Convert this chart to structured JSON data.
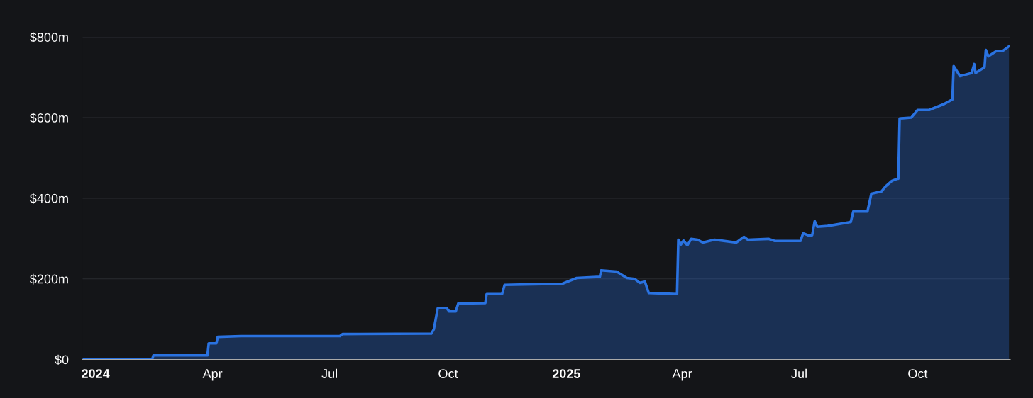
{
  "chart_data": {
    "type": "area",
    "xlim": [
      "2023-12-22",
      "2025-12-12"
    ],
    "xticks": [
      {
        "value": "2024-01-01",
        "label": "2024"
      },
      {
        "value": "2024-04-01",
        "label": "Apr"
      },
      {
        "value": "2024-07-01",
        "label": "Jul"
      },
      {
        "value": "2024-10-01",
        "label": "Oct"
      },
      {
        "value": "2025-01-01",
        "label": "2025"
      },
      {
        "value": "2025-04-01",
        "label": "Apr"
      },
      {
        "value": "2025-07-01",
        "label": "Jul"
      },
      {
        "value": "2025-10-01",
        "label": "Oct"
      }
    ],
    "ylim": [
      0,
      800
    ],
    "yticks": [
      {
        "value": 0,
        "label": "$0"
      },
      {
        "value": 200,
        "label": "$200m"
      },
      {
        "value": 400,
        "label": "$400m"
      },
      {
        "value": 600,
        "label": "$600m"
      },
      {
        "value": 800,
        "label": "$800m"
      }
    ],
    "grid": "y",
    "marker": "none",
    "line_style": "solid",
    "x": [
      "2023-12-22",
      "2024-02-14",
      "2024-02-15",
      "2024-03-28",
      "2024-03-29",
      "2024-04-04",
      "2024-04-05",
      "2024-04-23",
      "2024-07-09",
      "2024-07-11",
      "2024-09-18",
      "2024-09-20",
      "2024-09-23",
      "2024-09-30",
      "2024-10-02",
      "2024-10-07",
      "2024-10-09",
      "2024-10-30",
      "2024-10-31",
      "2024-11-12",
      "2024-11-14",
      "2024-12-29",
      "2025-01-09",
      "2025-01-27",
      "2025-01-28",
      "2025-02-09",
      "2025-02-17",
      "2025-02-23",
      "2025-02-27",
      "2025-03-03",
      "2025-03-06",
      "2025-03-28",
      "2025-03-29",
      "2025-03-31",
      "2025-04-02",
      "2025-04-05",
      "2025-04-08",
      "2025-04-13",
      "2025-04-17",
      "2025-04-26",
      "2025-05-13",
      "2025-05-19",
      "2025-05-22",
      "2025-06-07",
      "2025-06-12",
      "2025-07-02",
      "2025-07-04",
      "2025-07-08",
      "2025-07-11",
      "2025-07-13",
      "2025-07-15",
      "2025-07-23",
      "2025-08-10",
      "2025-08-12",
      "2025-08-23",
      "2025-08-26",
      "2025-09-03",
      "2025-09-06",
      "2025-09-11",
      "2025-09-15",
      "2025-09-16",
      "2025-09-17",
      "2025-09-26",
      "2025-10-01",
      "2025-10-10",
      "2025-10-21",
      "2025-10-28",
      "2025-10-29",
      "2025-11-03",
      "2025-11-12",
      "2025-11-14",
      "2025-11-15",
      "2025-11-22",
      "2025-11-23",
      "2025-11-25",
      "2025-12-01",
      "2025-12-06",
      "2025-12-11"
    ],
    "series": [
      {
        "color": "#2a72e0",
        "values": [
          0,
          0,
          10,
          10,
          40,
          40,
          56,
          58,
          58,
          63,
          64,
          75,
          127,
          127,
          119,
          119,
          139,
          140,
          162,
          162,
          185,
          188,
          202,
          205,
          221,
          218,
          202,
          200,
          190,
          193,
          165,
          162,
          297,
          285,
          295,
          283,
          299,
          297,
          290,
          297,
          290,
          304,
          297,
          299,
          294,
          294,
          313,
          308,
          308,
          343,
          329,
          331,
          341,
          367,
          367,
          411,
          417,
          429,
          443,
          448,
          448,
          598,
          600,
          619,
          619,
          633,
          645,
          728,
          703,
          711,
          733,
          711,
          725,
          768,
          752,
          765,
          765,
          777
        ]
      }
    ]
  }
}
